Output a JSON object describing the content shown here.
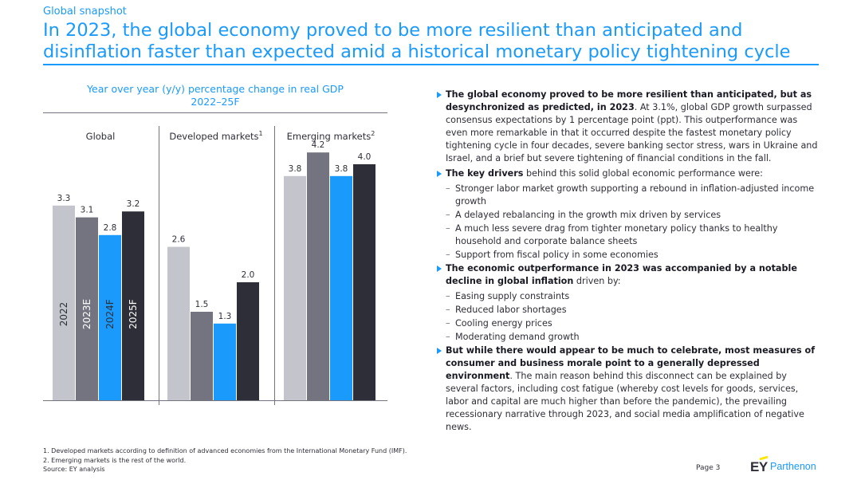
{
  "header": {
    "section_label": "Global snapshot",
    "title": "In 2023, the global economy proved to be more resilient than anticipated and disinflation faster than expected amid a historical monetary policy tightening cycle"
  },
  "colors": {
    "accent": "#1a9afa",
    "series_2022": "#c4c4cd",
    "series_2023E": "#747480",
    "series_2024F": "#1a9afa",
    "series_2025F": "#2e2e38"
  },
  "chart_data": {
    "type": "bar",
    "title": "Year over year (y/y) percentage change in real GDP",
    "subtitle": "2022–25F",
    "groups": [
      "Global",
      "Developed markets",
      "Emerging markets"
    ],
    "group_superscripts": [
      "",
      "1",
      "2"
    ],
    "series": [
      {
        "name": "2022",
        "values": [
          3.3,
          2.6,
          3.8
        ]
      },
      {
        "name": "2023E",
        "values": [
          3.1,
          1.5,
          4.2
        ]
      },
      {
        "name": "2024F",
        "values": [
          2.8,
          1.3,
          3.8
        ]
      },
      {
        "name": "2025F",
        "values": [
          3.2,
          2.0,
          4.0
        ]
      }
    ],
    "ylim": [
      0,
      4.6
    ],
    "grid": false,
    "legend": "inside-bars"
  },
  "bullets": [
    {
      "bold": "The global economy proved to be more resilient than anticipated, but as desynchronized as predicted, in 2023",
      "text": ". At 3.1%, global GDP growth surpassed consensus expectations by 1 percentage point (ppt). This outperformance was even more remarkable in that it occurred despite the fastest monetary policy tightening cycle in four decades, severe banking sector stress, wars in Ukraine and Israel, and a brief but severe tightening of financial conditions in the fall.",
      "subs": []
    },
    {
      "bold": "The key drivers",
      "text": " behind this solid global economic performance were:",
      "subs": [
        "Stronger labor market growth supporting a rebound in inflation-adjusted income growth",
        "A delayed rebalancing in the growth mix driven by services",
        "A much less severe drag from tighter monetary policy thanks to healthy household and corporate balance sheets",
        "Support from fiscal policy in some economies"
      ]
    },
    {
      "bold": "The economic outperformance in 2023 was accompanied by a notable decline in global inflation",
      "text": " driven by:",
      "subs": [
        "Easing supply constraints",
        "Reduced labor shortages",
        "Cooling energy prices",
        "Moderating demand growth"
      ]
    },
    {
      "bold": "But while there would appear to be much to celebrate, most measures of consumer and business morale point to a generally depressed environment",
      "text": ". The main reason behind this disconnect can be explained by several factors, including cost fatigue (whereby cost levels for goods, services, labor and capital are much higher than before the pandemic), the prevailing recessionary narrative through 2023, and social media amplification of negative news.",
      "subs": []
    }
  ],
  "footnotes": [
    "1.   Developed markets according to definition of advanced economies  from the International Monetary Fund (IMF).",
    "2.   Emerging markets is the rest of the world.",
    "Source:  EY analysis"
  ],
  "page": "Page 3",
  "logo": {
    "ey": "EY",
    "parthenon": "Parthenon"
  }
}
